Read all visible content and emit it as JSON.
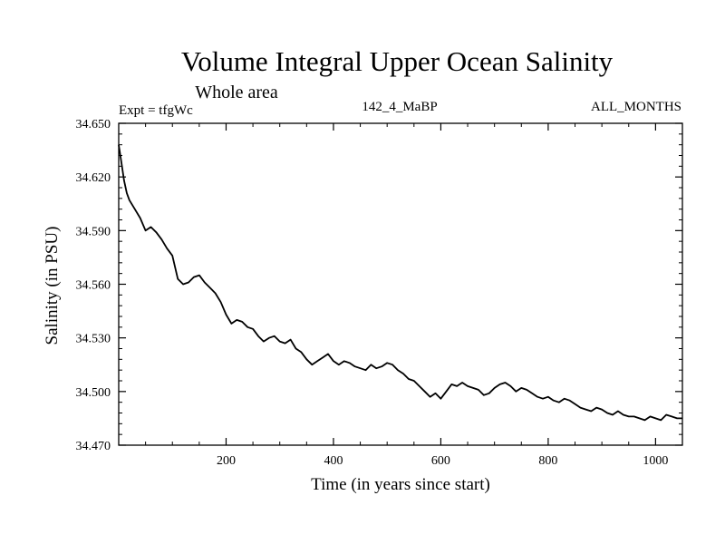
{
  "chart_data": {
    "type": "line",
    "title": "Volume Integral Upper Ocean Salinity",
    "subtitle": "Whole area",
    "expt_label": "Expt = tfgWc",
    "center_label": "142_4_MaBP",
    "right_label": "ALL_MONTHS",
    "xlabel": "Time (in years since start)",
    "ylabel": "Salinity (in PSU)",
    "xlim": [
      0,
      1050
    ],
    "ylim": [
      34.47,
      34.65
    ],
    "xticks": [
      200,
      400,
      600,
      800,
      1000
    ],
    "xtick_labels": [
      "200",
      "400",
      "600",
      "800",
      "1000"
    ],
    "yticks": [
      34.47,
      34.5,
      34.53,
      34.56,
      34.59,
      34.62,
      34.65
    ],
    "ytick_labels": [
      "34.470",
      "34.500",
      "34.530",
      "34.560",
      "34.590",
      "34.620",
      "34.650"
    ],
    "series": [
      {
        "name": "salinity",
        "x": [
          0,
          5,
          10,
          15,
          20,
          30,
          40,
          50,
          60,
          70,
          80,
          90,
          100,
          110,
          120,
          130,
          140,
          150,
          160,
          170,
          180,
          190,
          200,
          210,
          220,
          230,
          240,
          250,
          260,
          270,
          280,
          290,
          300,
          310,
          320,
          330,
          340,
          350,
          360,
          370,
          380,
          390,
          400,
          410,
          420,
          430,
          440,
          450,
          460,
          470,
          480,
          490,
          500,
          510,
          520,
          530,
          540,
          550,
          560,
          570,
          580,
          590,
          600,
          610,
          620,
          630,
          640,
          650,
          660,
          670,
          680,
          690,
          700,
          710,
          720,
          730,
          740,
          750,
          760,
          770,
          780,
          790,
          800,
          810,
          820,
          830,
          840,
          850,
          860,
          870,
          880,
          890,
          900,
          910,
          920,
          930,
          940,
          950,
          960,
          970,
          980,
          990,
          1000,
          1010,
          1020,
          1030,
          1040,
          1050
        ],
        "values": [
          34.638,
          34.628,
          34.618,
          34.611,
          34.607,
          34.602,
          34.597,
          34.59,
          34.592,
          34.589,
          34.585,
          34.58,
          34.576,
          34.563,
          34.56,
          34.561,
          34.564,
          34.565,
          34.561,
          34.558,
          34.555,
          34.55,
          34.543,
          34.538,
          34.54,
          34.539,
          34.536,
          34.535,
          34.531,
          34.528,
          34.53,
          34.531,
          34.528,
          34.527,
          34.529,
          34.524,
          34.522,
          34.518,
          34.515,
          34.517,
          34.519,
          34.521,
          34.517,
          34.515,
          34.517,
          34.516,
          34.514,
          34.513,
          34.512,
          34.515,
          34.513,
          34.514,
          34.516,
          34.515,
          34.512,
          34.51,
          34.507,
          34.506,
          34.503,
          34.5,
          34.497,
          34.499,
          34.496,
          34.5,
          34.504,
          34.503,
          34.505,
          34.503,
          34.502,
          34.501,
          34.498,
          34.499,
          34.502,
          34.504,
          34.505,
          34.503,
          34.5,
          34.502,
          34.501,
          34.499,
          34.497,
          34.496,
          34.497,
          34.495,
          34.494,
          34.496,
          34.495,
          34.493,
          34.491,
          34.49,
          34.489,
          34.491,
          34.49,
          34.488,
          34.487,
          34.489,
          34.487,
          34.486,
          34.486,
          34.485,
          34.484,
          34.486,
          34.485,
          34.484,
          34.487,
          34.486,
          34.485,
          34.485
        ]
      }
    ]
  }
}
